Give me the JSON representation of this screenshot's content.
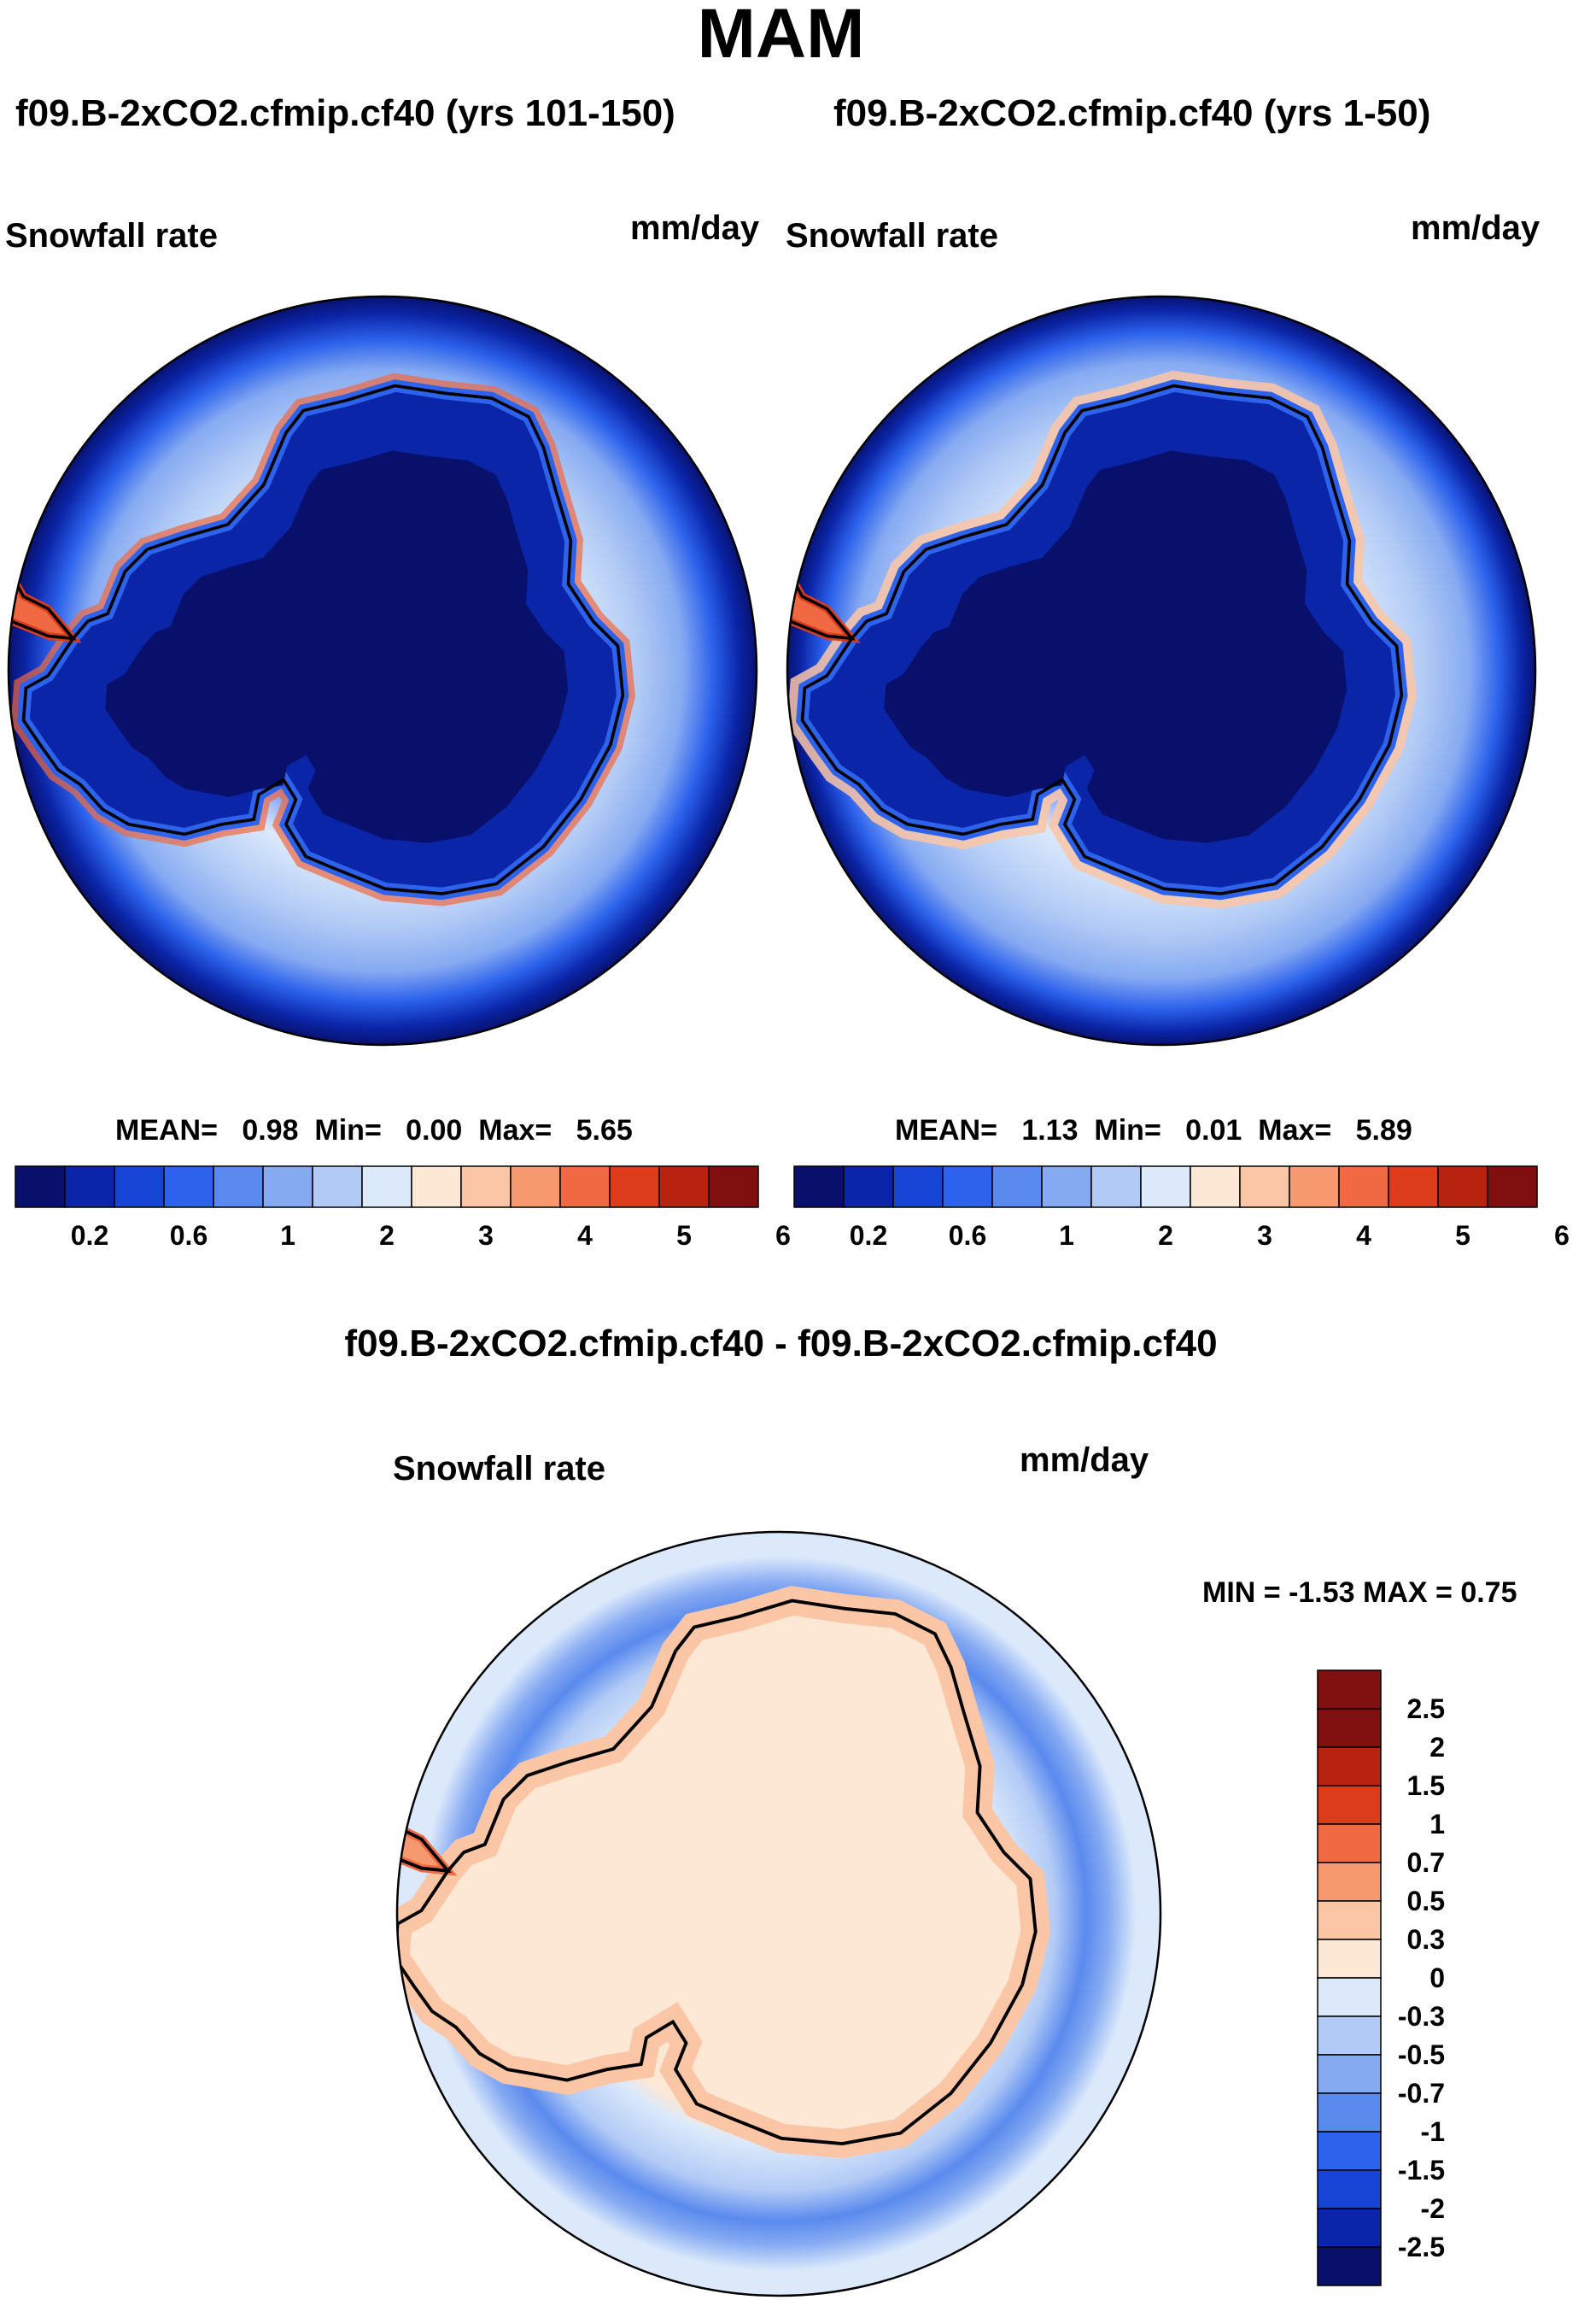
{
  "title": "MAM",
  "panels": [
    {
      "title": "f09.B-2xCO2.cfmip.cf40 (yrs 101-150)",
      "variable": "Snowfall rate",
      "units": "mm/day",
      "stats": {
        "mean_label": "MEAN=",
        "mean": "0.98",
        "min_label": "Min=",
        "min": "0.00",
        "max_label": "Max=",
        "max": "5.65"
      }
    },
    {
      "title": "f09.B-2xCO2.cfmip.cf40 (yrs 1-50)",
      "variable": "Snowfall rate",
      "units": "mm/day",
      "stats": {
        "mean_label": "MEAN=",
        "mean": "1.13",
        "min_label": "Min=",
        "min": "0.01",
        "max_label": "Max=",
        "max": "5.89"
      }
    }
  ],
  "diff": {
    "title": "f09.B-2xCO2.cfmip.cf40 - f09.B-2xCO2.cfmip.cf40",
    "variable": "Snowfall rate",
    "units": "mm/day",
    "minmax_text": "MIN =  -1.53 MAX =   0.75"
  },
  "colors": {
    "coastline": "#000000",
    "abs_scale": [
      "#08106b",
      "#0a25a8",
      "#1645d6",
      "#2c62ec",
      "#5a8aee",
      "#86aaf2",
      "#b2cbf6",
      "#dbe9fb",
      "#fde8d6",
      "#fbc6a6",
      "#f6996e",
      "#ef6a42",
      "#dc3b1c",
      "#b8230f",
      "#801010"
    ],
    "diff_scale": [
      "#08106b",
      "#0a25a8",
      "#1645d6",
      "#2c62ec",
      "#5a8aee",
      "#86aaf2",
      "#b2cbf6",
      "#dbe9fb",
      "#fde8d6",
      "#fbc6a6",
      "#f6996e",
      "#ef6a42",
      "#dc3b1c",
      "#b8230f",
      "#801010"
    ]
  },
  "chart_data": [
    {
      "type": "heatmap",
      "projection": "south-polar-stereographic",
      "title": "f09.B-2xCO2.cfmip.cf40 (yrs 101-150)",
      "variable": "Snowfall rate",
      "units": "mm/day",
      "mean": 0.98,
      "min": 0.0,
      "max": 5.65,
      "colorbar": {
        "orientation": "horizontal",
        "labels": [
          "0.2",
          "0.6",
          "1",
          "2",
          "3",
          "4",
          "5",
          "6"
        ]
      }
    },
    {
      "type": "heatmap",
      "projection": "south-polar-stereographic",
      "title": "f09.B-2xCO2.cfmip.cf40 (yrs 1-50)",
      "variable": "Snowfall rate",
      "units": "mm/day",
      "mean": 1.13,
      "min": 0.01,
      "max": 5.89,
      "colorbar": {
        "orientation": "horizontal",
        "labels": [
          "0.2",
          "0.6",
          "1",
          "2",
          "3",
          "4",
          "5",
          "6"
        ]
      }
    },
    {
      "type": "heatmap",
      "projection": "south-polar-stereographic",
      "title": "f09.B-2xCO2.cfmip.cf40 - f09.B-2xCO2.cfmip.cf40",
      "variable": "Snowfall rate",
      "units": "mm/day",
      "min": -1.53,
      "max": 0.75,
      "colorbar": {
        "orientation": "vertical",
        "labels": [
          "2.5",
          "2",
          "1.5",
          "1",
          "0.7",
          "0.5",
          "0.3",
          "0",
          "-0.3",
          "-0.5",
          "-0.7",
          "-1",
          "-1.5",
          "-2",
          "-2.5"
        ]
      }
    }
  ]
}
